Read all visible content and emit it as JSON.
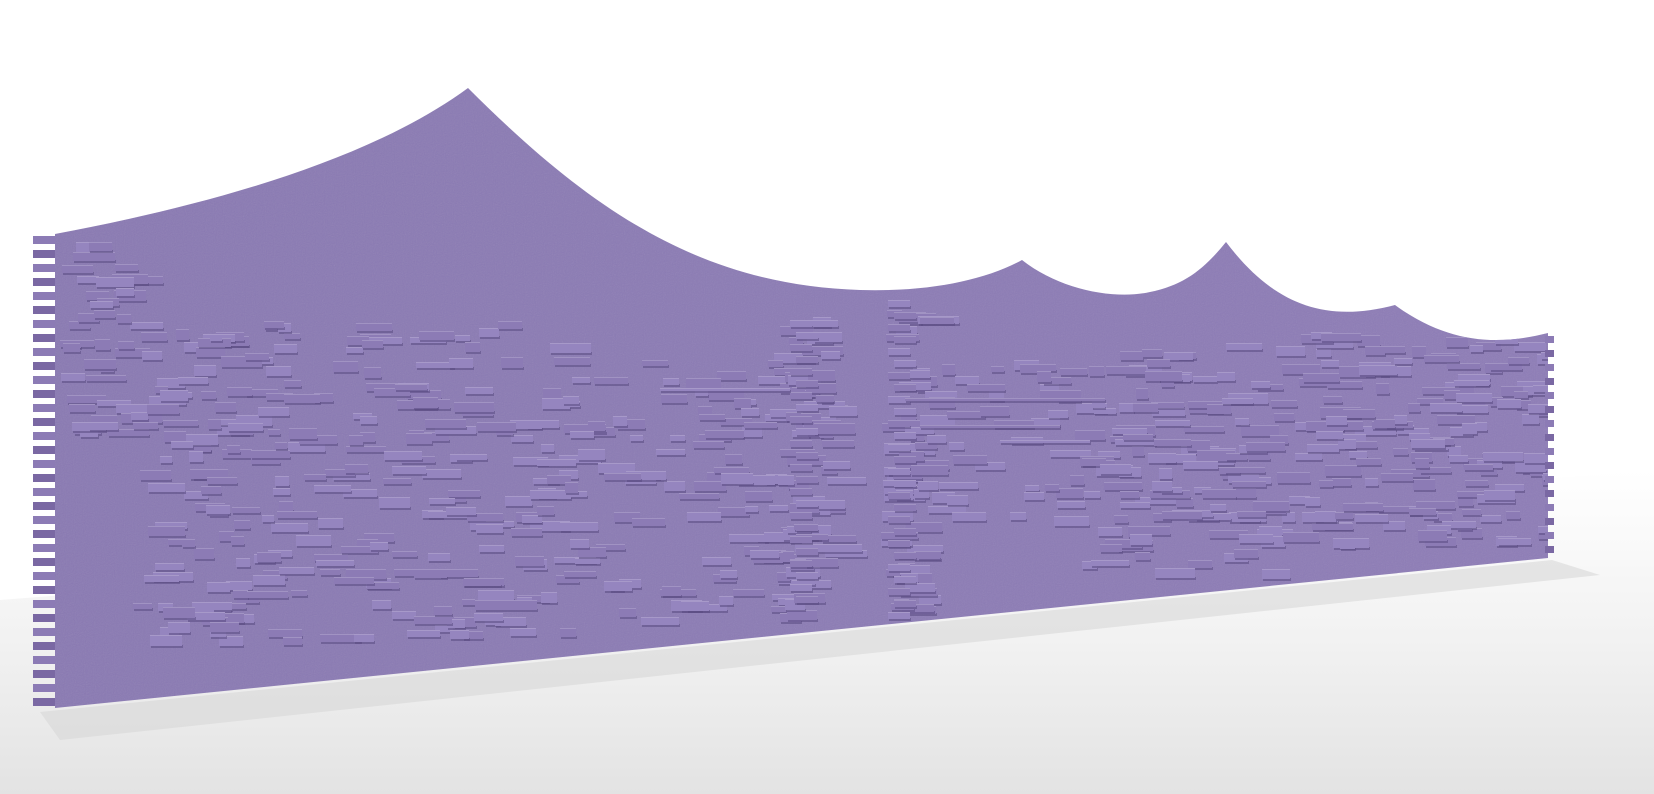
{
  "scene": {
    "subject": "3d-rendered-parametric-wall",
    "colors": {
      "background": "#ffffff",
      "floor_light": "#f4f4f4",
      "floor_shadow": "#d9d9d9",
      "wall": "#8c7bb5",
      "wall_light": "#9585bf",
      "wall_dark": "#7a68a3",
      "shadow": "#5a4a82",
      "edge": "#c9c1de"
    }
  }
}
